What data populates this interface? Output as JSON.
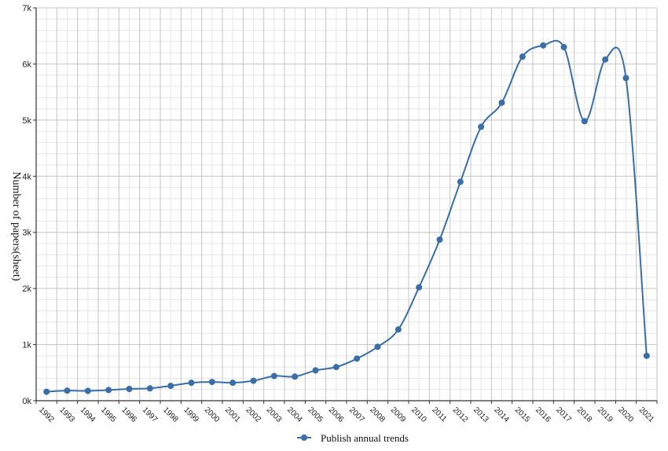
{
  "chart_data": {
    "type": "line",
    "title": "",
    "xlabel": "",
    "ylabel": "Number of papers(sheet)",
    "ylim": [
      0,
      7000
    ],
    "yticks": [
      {
        "value": 0,
        "label": "0k"
      },
      {
        "value": 1000,
        "label": "1k"
      },
      {
        "value": 2000,
        "label": "2k"
      },
      {
        "value": 3000,
        "label": "3k"
      },
      {
        "value": 4000,
        "label": "4k"
      },
      {
        "value": 5000,
        "label": "5k"
      },
      {
        "value": 6000,
        "label": "6k"
      },
      {
        "value": 7000,
        "label": "7k"
      }
    ],
    "grid": true,
    "legend_position": "bottom",
    "categories": [
      "1992",
      "1993",
      "1994",
      "1995",
      "1996",
      "1997",
      "1998",
      "1999",
      "2000",
      "2001",
      "2002",
      "2003",
      "2004",
      "2005",
      "2006",
      "2007",
      "2008",
      "2009",
      "2010",
      "2011",
      "2012",
      "2013",
      "2014",
      "2015",
      "2016",
      "2017",
      "2018",
      "2019",
      "2020",
      "2021"
    ],
    "series": [
      {
        "name": "Publish annual trends",
        "color": "#3a6ea8",
        "values": [
          160,
          180,
          175,
          190,
          210,
          220,
          265,
          320,
          335,
          320,
          355,
          440,
          430,
          540,
          600,
          750,
          960,
          1270,
          2020,
          2870,
          3900,
          4880,
          5310,
          6130,
          6330,
          6300,
          4980,
          6080,
          5750,
          800
        ]
      }
    ]
  }
}
